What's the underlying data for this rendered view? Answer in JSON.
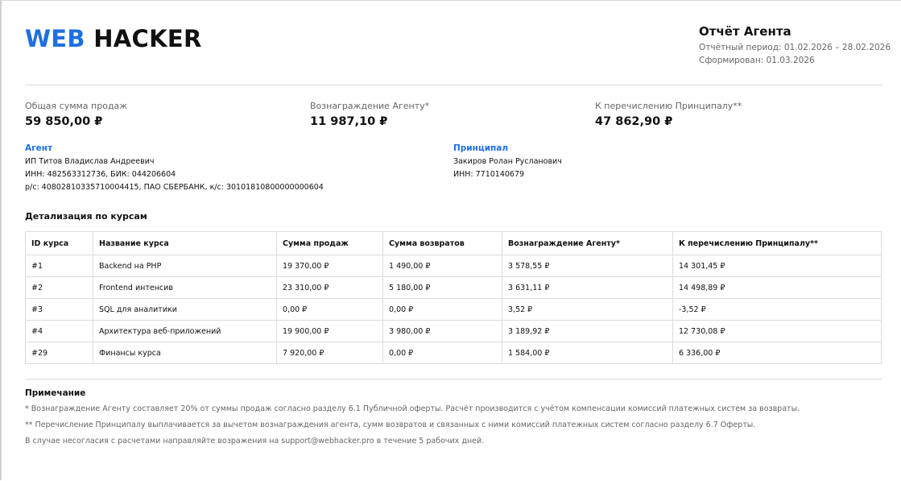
{
  "header": {
    "logo_part1": "WEB",
    "logo_part2": "HACKER",
    "title": "Отчёт Агента",
    "period": "Отчётный период: 01.02.2026 – 28.02.2026",
    "generated": "Сформирован: 01.03.2026"
  },
  "summary": [
    {
      "label": "Общая сумма продаж",
      "value": "59 850,00 ₽"
    },
    {
      "label": "Вознаграждение Агенту*",
      "value": "11 987,10 ₽"
    },
    {
      "label": "К перечислению Принципалу**",
      "value": "47 862,90 ₽"
    }
  ],
  "agent": {
    "title": "Агент",
    "name": "ИП Титов Владислав Андреевич",
    "ids": "ИНН: 482563312736, БИК: 044206604",
    "bank": "р/с: 40802810335710004415, ПАО СБЕРБАНК, к/с: 30101810800000000604"
  },
  "principal": {
    "title": "Принципал",
    "name": "Закиров Ролан Русланович",
    "ids": "ИНН: 7710140679"
  },
  "table": {
    "title": "Детализация по курсам",
    "headers": [
      "ID курса",
      "Название курса",
      "Сумма продаж",
      "Сумма возвратов",
      "Вознаграждение Агенту*",
      "К перечислению Принципалу**"
    ],
    "rows": [
      [
        "#1",
        "Backend на PHP",
        "19 370,00 ₽",
        "1 490,00 ₽",
        "3 578,55 ₽",
        "14 301,45 ₽"
      ],
      [
        "#2",
        "Frontend интенсив",
        "23 310,00 ₽",
        "5 180,00 ₽",
        "3 631,11 ₽",
        "14 498,89 ₽"
      ],
      [
        "#3",
        "SQL для аналитики",
        "0,00 ₽",
        "0,00 ₽",
        "3,52 ₽",
        "-3,52 ₽"
      ],
      [
        "#4",
        "Архитектура веб-приложений",
        "19 900,00 ₽",
        "3 980,00 ₽",
        "3 189,92 ₽",
        "12 730,08 ₽"
      ],
      [
        "#29",
        "Финансы курса",
        "7 920,00 ₽",
        "0,00 ₽",
        "1 584,00 ₽",
        "6 336,00 ₽"
      ]
    ]
  },
  "notes": {
    "title": "Примечание",
    "lines": [
      "* Вознаграждение Агенту составляет 20% от суммы продаж согласно разделу 6.1 Публичной оферты. Расчёт производится с учётом компенсации комиссий платежных систем за возвраты.",
      "** Перечисление Принципалу выплачивается за вычетом вознаграждения агента, сумм возвратов и связанных с ними комиссий платежных систем согласно разделу 6.7 Оферты.",
      "В случае несогласия с расчетами направляйте возражения на support@webhacker.pro в течение 5 рабочих дней."
    ]
  },
  "colors": {
    "accent": "#1f6fe0"
  }
}
